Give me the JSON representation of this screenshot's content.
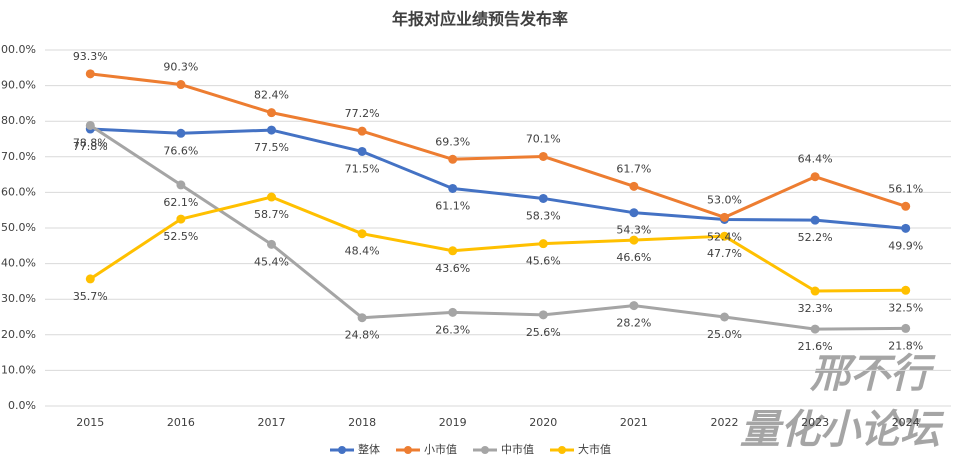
{
  "chart_data": {
    "type": "line",
    "title": "年报对应业绩预告发布率",
    "categories": [
      "2015",
      "2016",
      "2017",
      "2018",
      "2019",
      "2020",
      "2021",
      "2022",
      "2023",
      "2024"
    ],
    "ylim": [
      0,
      100
    ],
    "yticks": [
      {
        "value": 0,
        "label": "0.0%"
      },
      {
        "value": 10,
        "label": "10.0%"
      },
      {
        "value": 20,
        "label": "20.0%"
      },
      {
        "value": 30,
        "label": "30.0%"
      },
      {
        "value": 40,
        "label": "40.0%"
      },
      {
        "value": 50,
        "label": "50.0%"
      },
      {
        "value": 60,
        "label": "60.0%"
      },
      {
        "value": 70,
        "label": "70.0%"
      },
      {
        "value": 80,
        "label": "80.0%"
      },
      {
        "value": 90,
        "label": "90.0%"
      },
      {
        "value": 100,
        "label": "100.0%"
      }
    ],
    "grid": true,
    "legend": "bottom",
    "series": [
      {
        "name": "整体",
        "color": "#4472c4",
        "values": [
          77.8,
          76.6,
          77.5,
          71.5,
          61.1,
          58.3,
          54.3,
          52.4,
          52.2,
          49.9
        ],
        "value_labels": [
          "77.8%",
          "76.6%",
          "77.5%",
          "71.5%",
          "61.1%",
          "58.3%",
          "54.3%",
          "52.4%",
          "52.2%",
          "49.9%"
        ]
      },
      {
        "name": "小市值",
        "color": "#ed7d31",
        "values": [
          93.3,
          90.3,
          82.4,
          77.2,
          69.3,
          70.1,
          61.7,
          53.0,
          64.4,
          56.1
        ],
        "value_labels": [
          "93.3%",
          "90.3%",
          "82.4%",
          "77.2%",
          "69.3%",
          "70.1%",
          "61.7%",
          "53.0%",
          "64.4%",
          "56.1%"
        ]
      },
      {
        "name": "中市值",
        "color": "#a5a5a5",
        "values": [
          78.8,
          62.1,
          45.4,
          24.8,
          26.3,
          25.6,
          28.2,
          25.0,
          21.6,
          21.8
        ],
        "value_labels": [
          "78.8%",
          "62.1%",
          "45.4%",
          "24.8%",
          "26.3%",
          "25.6%",
          "28.2%",
          "25.0%",
          "21.6%",
          "21.8%"
        ]
      },
      {
        "name": "大市值",
        "color": "#ffc000",
        "values": [
          35.7,
          52.5,
          58.7,
          48.4,
          43.6,
          45.6,
          46.6,
          47.7,
          32.3,
          32.5
        ],
        "value_labels": [
          "35.7%",
          "52.5%",
          "58.7%",
          "48.4%",
          "43.6%",
          "45.6%",
          "46.6%",
          "47.7%",
          "32.3%",
          "32.5%"
        ]
      }
    ],
    "watermark": [
      "邢不行",
      "量化小论坛"
    ]
  }
}
